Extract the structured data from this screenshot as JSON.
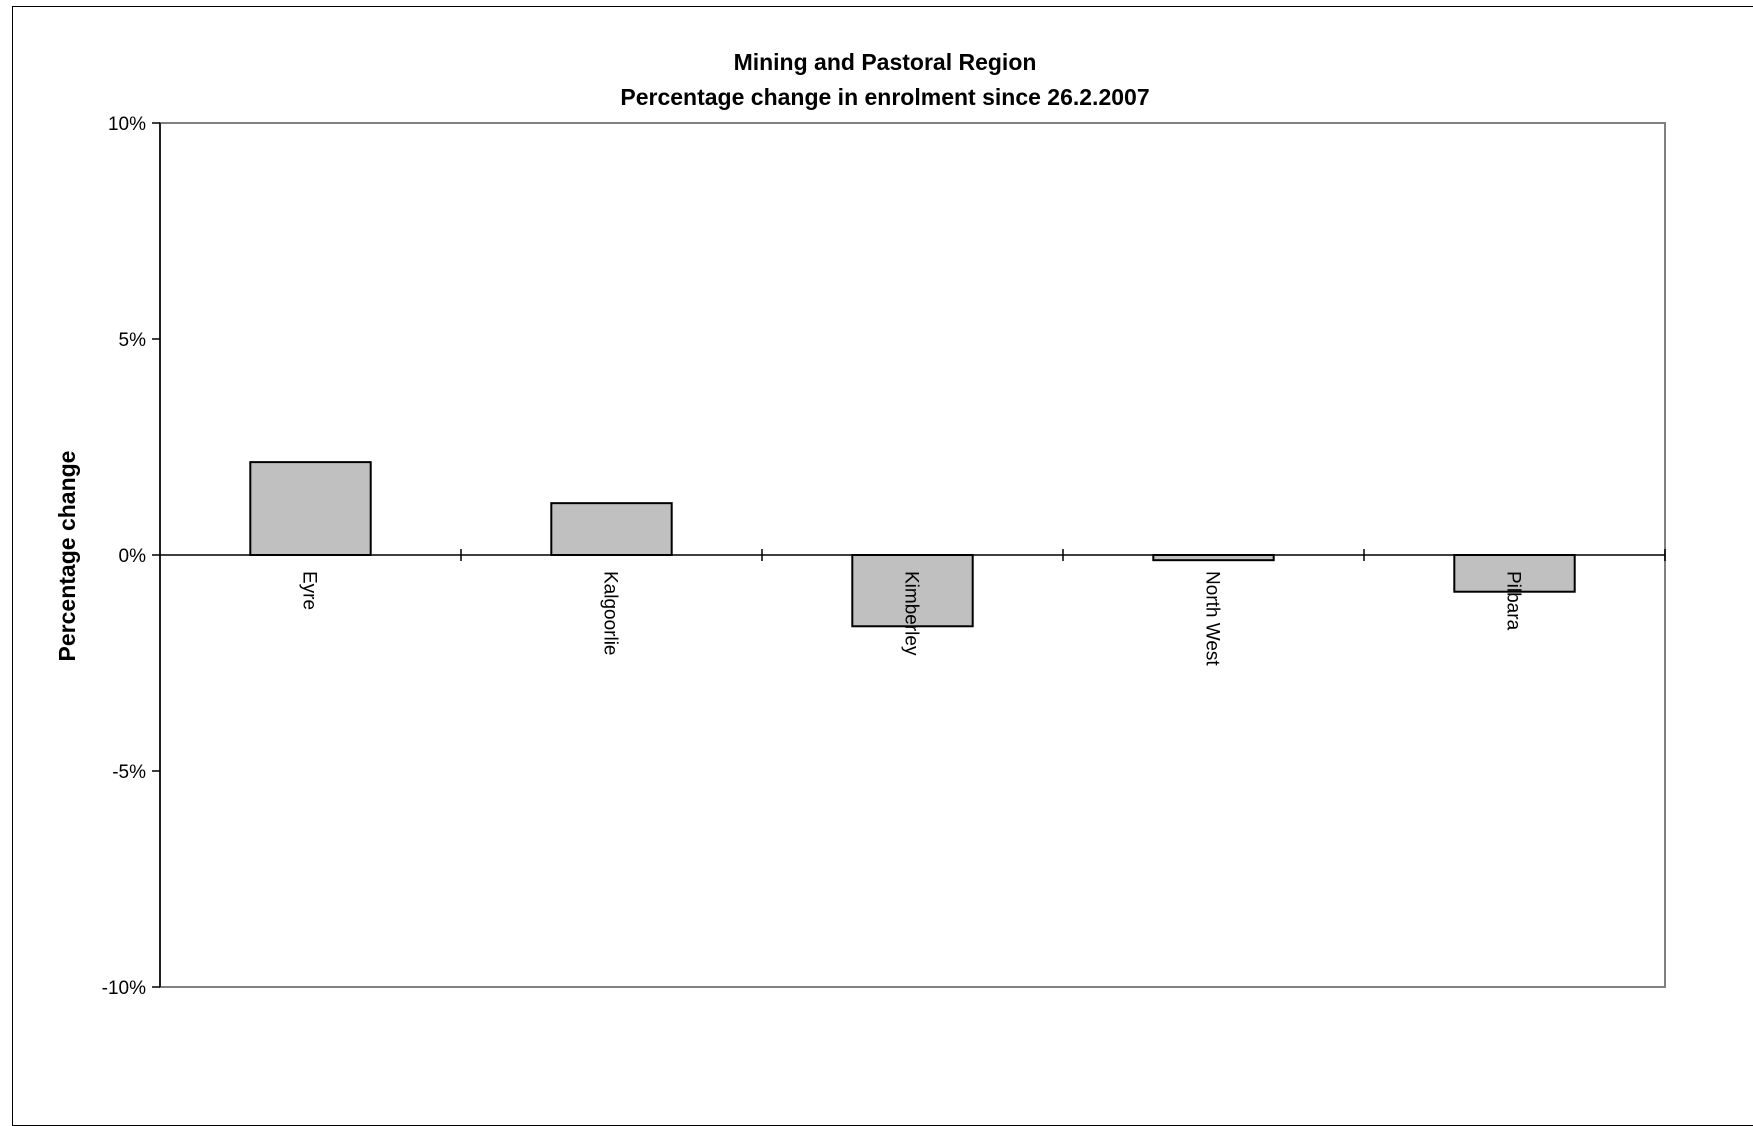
{
  "chart_data": {
    "type": "bar",
    "title": "Mining and Pastoral Region",
    "subtitle": "Percentage change in enrolment since 26.2.2007",
    "xlabel": "",
    "ylabel": "Percentage change",
    "ylim": [
      -10,
      10
    ],
    "yticks": [
      10,
      5,
      0,
      -5,
      -10
    ],
    "ytick_labels": [
      "10%",
      "5%",
      "0%",
      "-5%",
      "-10%"
    ],
    "categories": [
      "Eyre",
      "Kalgoorlie",
      "Kimberley",
      "North West",
      "Pilbara"
    ],
    "values": [
      2.15,
      1.2,
      -1.65,
      -0.12,
      -0.85
    ],
    "grid": false,
    "legend": "none",
    "bar_color": "#c0c0c0",
    "bar_edge_color": "#000000",
    "plot_border_color": "#808080"
  }
}
